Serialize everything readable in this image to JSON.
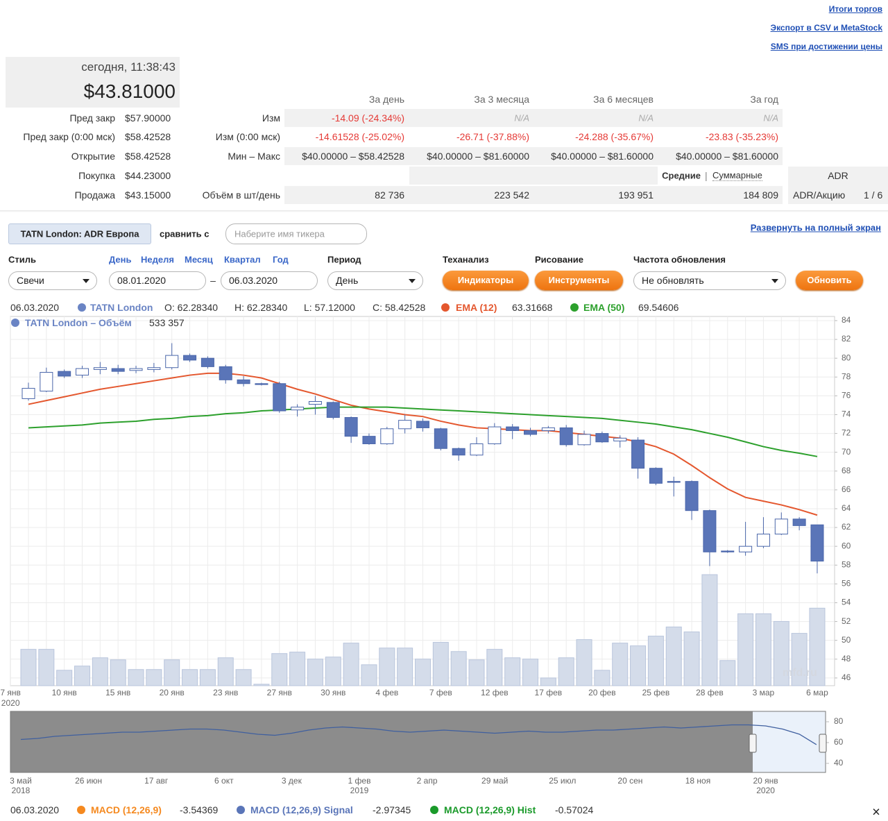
{
  "links": [
    "Итоги торгов",
    "Экспорт в CSV и MetaStock",
    "SMS при достижении цены"
  ],
  "quote": {
    "time": "сегодня, 11:38:43",
    "price": "$43.81000"
  },
  "prices": [
    {
      "label": "Пред закр",
      "value": "$57.90000"
    },
    {
      "label": "Пред закр (0:00 мск)",
      "value": "$58.42528"
    },
    {
      "label": "Открытие",
      "value": "$58.42528"
    },
    {
      "label": "Покупка",
      "value": "$44.23000"
    },
    {
      "label": "Продажа",
      "value": "$43.15000"
    }
  ],
  "stats": {
    "headers": [
      "За день",
      "За 3 месяца",
      "За 6 месяцев",
      "За год"
    ],
    "rows": [
      {
        "label": "Изм",
        "cells": [
          "-14.09 (-24.34%)",
          "N/A",
          "N/A",
          "N/A"
        ]
      },
      {
        "label": "Изм (0:00 мск)",
        "cells": [
          "-14.61528 (-25.02%)",
          "-26.71 (-37.88%)",
          "-24.288 (-35.67%)",
          "-23.83 (-35.23%)"
        ]
      },
      {
        "label": "Мин – Макс",
        "cells": [
          "$40.00000 – $58.42528",
          "$40.00000 – $81.60000",
          "$40.00000 – $81.60000",
          "$40.00000 – $81.60000"
        ]
      },
      {
        "label": "Объём в шт/день",
        "cells": [
          "82 736",
          "223 542",
          "193 951",
          "184 809"
        ]
      }
    ],
    "mode_averages": "Средние",
    "mode_separator": "|",
    "mode_totals": "Суммарные",
    "adr": "ADR",
    "adr_per_share_label": "ADR/Акцию",
    "adr_per_share": "1 / 6"
  },
  "toolbar": {
    "ticker": "TATN London: ADR Европа",
    "compare": "сравнить с",
    "compare_placeholder": "Наберите имя тикера",
    "fullscreen": "Развернуть на полный экран",
    "style_label": "Стиль",
    "style": "Свечи",
    "ranges": [
      "День",
      "Неделя",
      "Месяц",
      "Квартал",
      "Год"
    ],
    "date_from": "08.01.2020",
    "date_sep": "–",
    "date_to": "06.03.2020",
    "period_label": "Период",
    "period": "День",
    "ta_label": "Теханализ",
    "ta_button": "Индикаторы",
    "draw_label": "Рисование",
    "draw_button": "Инструменты",
    "refresh_label": "Частота обновления",
    "refresh": "Не обновлять",
    "refresh_button": "Обновить"
  },
  "legend": {
    "date": "06.03.2020",
    "name": "TATN London",
    "color": "#6a84c4",
    "o": "O: 62.28340",
    "h": "H: 62.28340",
    "l": "L: 57.12000",
    "c": "C: 58.42528",
    "volume": "533 357"
  },
  "watermark": "mfd.ru",
  "chart_data": [
    {
      "type": "candlestick",
      "categories": [
        null,
        null,
        "10 янв",
        null,
        null,
        "15 янв",
        null,
        null,
        "20 янв",
        null,
        null,
        "23 янв",
        null,
        null,
        "27 янв",
        null,
        null,
        "30 янв",
        null,
        null,
        "4 фев",
        null,
        null,
        "7 фев",
        null,
        null,
        "12 фев",
        null,
        null,
        "17 фев",
        null,
        null,
        "20 фев",
        null,
        null,
        "25 фев",
        null,
        null,
        "28 фев",
        null,
        null,
        "3 мар",
        null,
        null,
        "6 мар"
      ],
      "start_label": "7 янв",
      "start_year": "2020",
      "open": [
        75.7,
        76.5,
        78.6,
        78.2,
        78.8,
        78.9,
        78.7,
        78.8,
        79.0,
        80.3,
        80.0,
        79.1,
        77.7,
        77.3,
        77.3,
        74.5,
        75.1,
        75.3,
        73.7,
        71.7,
        70.9,
        72.5,
        73.3,
        72.5,
        70.4,
        69.7,
        70.9,
        72.7,
        72.3,
        72.3,
        72.6,
        70.8,
        72.0,
        71.2,
        71.3,
        68.3,
        66.9,
        66.9,
        63.8,
        59.5,
        59.4,
        60.0,
        61.3,
        62.9,
        62.2834
      ],
      "high": [
        77.4,
        79.0,
        78.8,
        79.2,
        79.6,
        79.3,
        79.2,
        79.5,
        81.6,
        80.5,
        80.2,
        79.3,
        78.1,
        77.4,
        77.5,
        75.1,
        76.0,
        75.4,
        73.8,
        72.0,
        72.7,
        74.0,
        73.6,
        72.6,
        70.5,
        71.6,
        73.1,
        73.0,
        72.6,
        72.8,
        72.9,
        72.3,
        72.2,
        71.8,
        71.6,
        68.4,
        67.4,
        67.0,
        63.9,
        59.6,
        62.6,
        63.1,
        63.6,
        63.1,
        62.2834
      ],
      "low": [
        75.5,
        76.4,
        77.9,
        77.9,
        78.3,
        78.3,
        78.4,
        78.5,
        78.8,
        79.6,
        78.9,
        77.3,
        77.0,
        77.1,
        74.2,
        73.8,
        74.0,
        73.5,
        71.0,
        70.8,
        70.8,
        72.0,
        72.2,
        70.2,
        69.1,
        69.6,
        70.8,
        71.4,
        71.7,
        72.0,
        70.6,
        70.7,
        71.0,
        70.5,
        67.2,
        66.5,
        65.3,
        62.8,
        57.9,
        59.3,
        59.0,
        59.8,
        61.2,
        61.7,
        57.12
      ],
      "close": [
        76.8,
        78.5,
        78.1,
        78.9,
        79.0,
        78.6,
        78.9,
        79.0,
        80.3,
        79.8,
        79.1,
        77.7,
        77.3,
        77.2,
        74.4,
        74.8,
        75.4,
        73.7,
        71.7,
        70.9,
        72.5,
        73.4,
        72.6,
        70.4,
        69.7,
        70.9,
        72.7,
        72.3,
        71.9,
        72.6,
        70.8,
        71.9,
        71.1,
        71.5,
        68.3,
        66.7,
        66.8,
        63.8,
        59.4,
        59.4,
        60.0,
        61.3,
        62.9,
        62.2,
        58.42528
      ],
      "up_color": "#ffffff",
      "down_color": "#5a75b8",
      "edge_color": "#4a66aa",
      "lines": [
        {
          "name": "EMA (12)",
          "color": "#e4572e",
          "values": [
            75.1,
            75.5,
            75.9,
            76.3,
            76.7,
            77.0,
            77.3,
            77.6,
            77.9,
            78.2,
            78.4,
            78.4,
            78.2,
            77.9,
            77.3,
            76.7,
            76.2,
            75.6,
            75.0,
            74.6,
            74.3,
            74.0,
            73.8,
            73.3,
            72.9,
            72.6,
            72.5,
            72.4,
            72.3,
            72.3,
            72.1,
            71.9,
            71.7,
            71.5,
            71.1,
            70.6,
            69.8,
            68.6,
            67.3,
            66.1,
            65.2,
            64.8,
            64.4,
            63.9,
            63.31668
          ]
        },
        {
          "name": "EMA (50)",
          "color": "#2ca02c",
          "values": [
            72.6,
            72.7,
            72.8,
            72.9,
            73.1,
            73.2,
            73.3,
            73.5,
            73.6,
            73.8,
            73.9,
            74.1,
            74.2,
            74.4,
            74.5,
            74.6,
            74.7,
            74.8,
            74.8,
            74.8,
            74.8,
            74.7,
            74.6,
            74.5,
            74.4,
            74.3,
            74.2,
            74.1,
            74.0,
            73.9,
            73.8,
            73.7,
            73.6,
            73.4,
            73.2,
            73.0,
            72.7,
            72.4,
            72.0,
            71.6,
            71.1,
            70.6,
            70.2,
            69.9,
            69.54606
          ]
        }
      ],
      "volume": {
        "name": "TATN London – Объём",
        "color": "#d4dcea",
        "values": [
          250000,
          250000,
          106000,
          135000,
          192000,
          178000,
          111000,
          111000,
          178000,
          111000,
          111000,
          192000,
          111000,
          10000,
          221000,
          231000,
          183000,
          197000,
          293000,
          144000,
          259000,
          259000,
          183000,
          298000,
          235000,
          178000,
          250000,
          192000,
          183000,
          53000,
          192000,
          317000,
          106000,
          293000,
          274000,
          341000,
          404000,
          370000,
          764000,
          173000,
          495000,
          495000,
          442000,
          360000,
          533357
        ]
      },
      "ylim": [
        45.18,
        84.44
      ],
      "yticks": [
        46,
        48,
        50,
        52,
        54,
        56,
        58,
        60,
        62,
        64,
        66,
        68,
        70,
        72,
        74,
        76,
        78,
        80,
        82,
        84
      ],
      "grid": true
    },
    {
      "type": "line",
      "categories": [
        "3 май",
        null,
        null,
        null,
        "26 июн",
        null,
        null,
        null,
        "17 авг",
        null,
        null,
        null,
        "6 окт",
        null,
        null,
        null,
        "3 дек",
        null,
        null,
        null,
        "1 фев",
        null,
        null,
        null,
        "2 апр",
        null,
        null,
        null,
        "29 май",
        null,
        null,
        null,
        "25 июл",
        null,
        null,
        null,
        "20 сен",
        null,
        null,
        null,
        "18 ноя",
        null,
        null,
        null,
        "20 янв",
        null,
        null,
        null
      ],
      "category_years": [
        "2018",
        null,
        null,
        null,
        null,
        null,
        null,
        null,
        null,
        null,
        null,
        null,
        null,
        null,
        null,
        null,
        null,
        null,
        null,
        null,
        "2019",
        null,
        null,
        null,
        null,
        null,
        null,
        null,
        null,
        null,
        null,
        null,
        null,
        null,
        null,
        null,
        null,
        null,
        null,
        null,
        null,
        null,
        null,
        null,
        "2020",
        null,
        null,
        null
      ],
      "values": [
        63,
        64,
        66,
        67,
        68,
        69,
        70,
        70,
        71,
        72,
        73,
        73,
        72,
        70,
        68,
        67,
        69,
        72,
        74,
        75,
        74,
        73,
        71,
        70,
        71,
        72,
        71,
        70,
        69,
        70,
        71,
        70,
        70,
        71,
        72,
        72,
        73,
        74,
        75,
        74,
        75,
        76,
        77,
        77,
        76,
        73,
        68,
        58
      ],
      "color": "#3f5f9f",
      "ylim": [
        31.3,
        90
      ],
      "yticks": [
        40,
        60,
        80
      ]
    }
  ],
  "macd_legend": {
    "date": "06.03.2020",
    "items": [
      {
        "name": "MACD (12,26,9)",
        "color": "#f5891f",
        "value": "-3.54369"
      },
      {
        "name": "MACD (12,26,9) Signal",
        "color": "#5a75b8",
        "value": "-2.97345"
      },
      {
        "name": "MACD (12,26,9) Hist",
        "color": "#1a9a2a",
        "value": "-0.57024"
      }
    ],
    "close": "×"
  }
}
